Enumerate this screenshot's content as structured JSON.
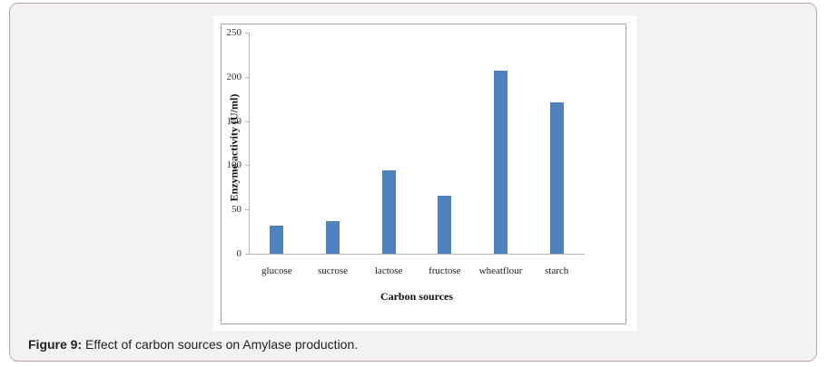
{
  "figure": {
    "caption_label": "Figure 9:",
    "caption_text": " Effect of carbon sources on Amylase production."
  },
  "chart_data": {
    "type": "bar",
    "title": "",
    "xlabel": "Carbon sources",
    "ylabel": "Enzyme activity (U/ml)",
    "categories": [
      "glucose",
      "sucrose",
      "lactose",
      "fructose",
      "wheatflour",
      "starch"
    ],
    "values": [
      32,
      37,
      94,
      66,
      207,
      171
    ],
    "ylim": [
      0,
      250
    ],
    "yticks": [
      0,
      50,
      100,
      150,
      200,
      250
    ],
    "grid": false,
    "legend": null,
    "bar_color": "#4f81bd"
  }
}
